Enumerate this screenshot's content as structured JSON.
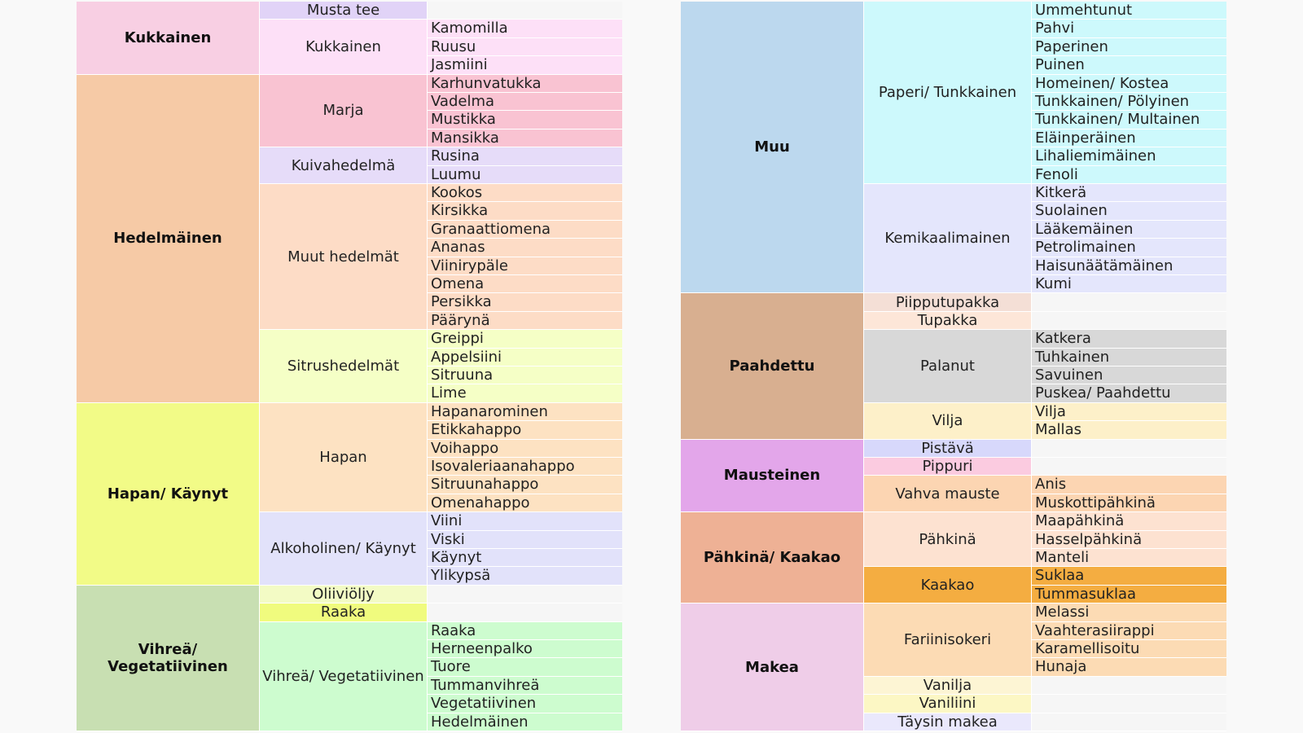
{
  "left": [
    {
      "name": "Kukkainen",
      "color": "#f8cfe3",
      "subs": [
        {
          "name": "Musta tee",
          "color": "#e1d3f7",
          "items": [],
          "itemColor": "#f6f6f6"
        },
        {
          "name": "Kukkainen",
          "color": "#fde0f7",
          "items": [
            "Kamomilla",
            "Ruusu",
            "Jasmiini"
          ],
          "itemColor": "#fde0f7"
        }
      ]
    },
    {
      "name": "Hedelmäinen",
      "color": "#f6caa6",
      "subs": [
        {
          "name": "Marja",
          "color": "#f9c3d2",
          "items": [
            "Karhunvatukka",
            "Vadelma",
            "Mustikka",
            "Mansikka"
          ],
          "itemColor": "#f9c3d2"
        },
        {
          "name": "Kuivahedelmä",
          "color": "#e6dcf9",
          "items": [
            "Rusina",
            "Luumu"
          ],
          "itemColor": "#e6dcf9"
        },
        {
          "name": "Muut hedelmät",
          "color": "#fddcc6",
          "items": [
            "Kookos",
            "Kirsikka",
            "Granaattiomena",
            "Ananas",
            "Viinirypäle",
            "Omena",
            "Persikka",
            "Päärynä"
          ],
          "itemColor": "#fddcc6"
        },
        {
          "name": "Sitrushedelmät",
          "color": "#f5ffc6",
          "items": [
            "Greippi",
            "Appelsiini",
            "Sitruuna",
            "Lime"
          ],
          "itemColor": "#f5ffc6"
        }
      ]
    },
    {
      "name": "Hapan/ Käynyt",
      "color": "#f2fb87",
      "subs": [
        {
          "name": "Hapan",
          "color": "#fde2c2",
          "items": [
            "Hapanarominen",
            "Etikkahappo",
            "Voihappo",
            "Isovaleriaanahappo",
            "Sitruunahappo",
            "Omenahappo"
          ],
          "itemColor": "#fde2c2"
        },
        {
          "name": "Alkoholinen/ Käynyt",
          "color": "#e2e2fa",
          "items": [
            "Viini",
            "Viski",
            "Käynyt",
            "Ylikypsä"
          ],
          "itemColor": "#e2e2fa"
        }
      ]
    },
    {
      "name": "Vihreä/ Vegetatiivinen",
      "color": "#c8dfb2",
      "subs": [
        {
          "name": "Oliiviöljy",
          "color": "#f3fbc5",
          "items": [],
          "itemColor": "#f6f6f6"
        },
        {
          "name": "Raaka",
          "color": "#f0fb7e",
          "items": [],
          "itemColor": "#f6f6f6"
        },
        {
          "name": "Vihreä/ Vegetatiivinen",
          "color": "#cdfccf",
          "items": [
            "Raaka",
            "Herneenpalko",
            "Tuore",
            "Tummanvihreä",
            "Vegetatiivinen",
            "Hedelmäinen"
          ],
          "itemColor": "#cdfccf"
        }
      ]
    }
  ],
  "right": [
    {
      "name": "Muu",
      "color": "#bcd8ee",
      "subs": [
        {
          "name": "Paperi/ Tunkkainen",
          "color": "#cdf9fc",
          "items": [
            "Ummehtunut",
            "Pahvi",
            "Paperinen",
            "Puinen",
            "Homeinen/ Kostea",
            "Tunkkainen/ Pölyinen",
            "Tunkkainen/ Multainen",
            "Eläinperäinen",
            "Lihaliemimäinen",
            "Fenoli"
          ],
          "itemColor": "#cdf9fc"
        },
        {
          "name": "Kemikaalimainen",
          "color": "#e4e6fc",
          "items": [
            "Kitkerä",
            "Suolainen",
            "Lääkemäinen",
            "Petrolimainen",
            "Haisunäätämäinen",
            "Kumi"
          ],
          "itemColor": "#e4e6fc"
        }
      ]
    },
    {
      "name": "Paahdettu",
      "color": "#d8af90",
      "subs": [
        {
          "name": "Piipputupakka",
          "color": "#f4dfd6",
          "items": [],
          "itemColor": "#f6f6f6"
        },
        {
          "name": "Tupakka",
          "color": "#fde6d8",
          "items": [],
          "itemColor": "#f6f6f6"
        },
        {
          "name": "Palanut",
          "color": "#d8d8d8",
          "items": [
            "Katkera",
            "Tuhkainen",
            "Savuinen",
            "Puskea/ Paahdettu"
          ],
          "itemColor": "#d8d8d8"
        },
        {
          "name": "Vilja",
          "color": "#fdf0c9",
          "items": [
            "Vilja",
            "Mallas"
          ],
          "itemColor": "#fdf0c9"
        }
      ]
    },
    {
      "name": "Mausteinen",
      "color": "#e3a6ea",
      "subs": [
        {
          "name": "Pistävä",
          "color": "#d7d8fb",
          "items": [],
          "itemColor": "#f6f6f6"
        },
        {
          "name": "Pippuri",
          "color": "#fbcbe0",
          "items": [],
          "itemColor": "#f6f6f6"
        },
        {
          "name": "Vahva mauste",
          "color": "#fcd5b2",
          "items": [
            "Anis",
            "Muskottipähkinä"
          ],
          "itemColor": "#fcd5b2"
        }
      ]
    },
    {
      "name": "Pähkinä/ Kaakao",
      "color": "#eeb195",
      "subs": [
        {
          "name": "Pähkinä",
          "color": "#fde2d1",
          "items": [
            "Maapähkinä",
            "Hasselpähkinä",
            "Manteli"
          ],
          "itemColor": "#fde2d1"
        },
        {
          "name": "Kaakao",
          "color": "#f4ad41",
          "items": [
            "Suklaa",
            "Tummasuklaa"
          ],
          "itemColor": "#f4ad41"
        }
      ]
    },
    {
      "name": "Makea",
      "color": "#efcde8",
      "subs": [
        {
          "name": "Fariinisokeri",
          "color": "#fcdbb4",
          "items": [
            "Melassi",
            "Vaahterasiirappi",
            "Karamellisoitu",
            "Hunaja"
          ],
          "itemColor": "#fcdbb4"
        },
        {
          "name": "Vanilja",
          "color": "#fdf5d4",
          "items": [],
          "itemColor": "#f6f6f6"
        },
        {
          "name": "Vaniliini",
          "color": "#fcf7c4",
          "items": [],
          "itemColor": "#f6f6f6"
        },
        {
          "name": "Täysin makea",
          "color": "#eae8fc",
          "items": [],
          "itemColor": "#f6f6f6"
        }
      ]
    }
  ]
}
